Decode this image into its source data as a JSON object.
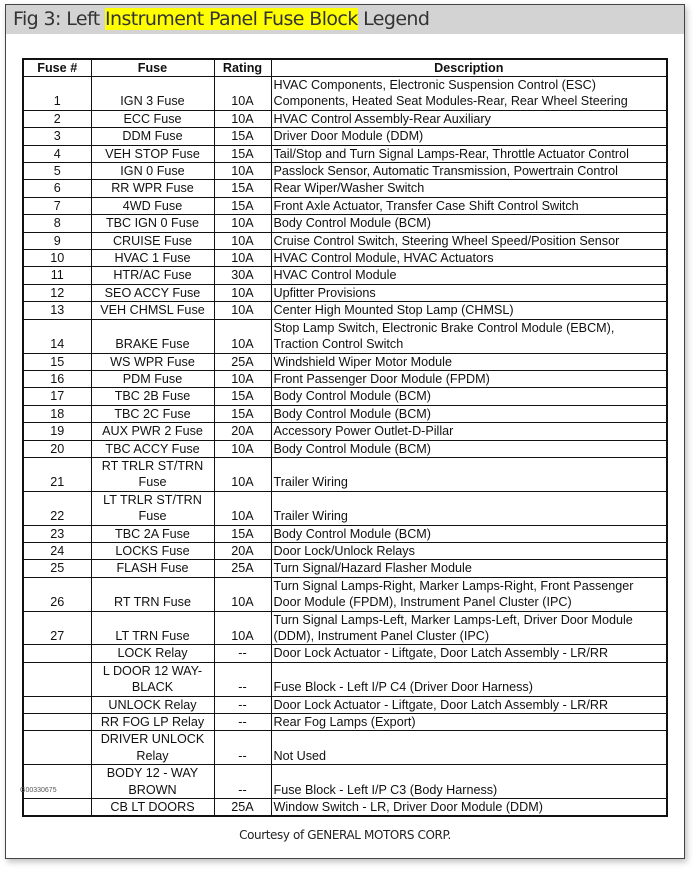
{
  "title": {
    "prefix": "Fig 3: Left ",
    "highlight": "Instrument Panel Fuse Block",
    "suffix": " Legend"
  },
  "highlight_color": "#ffff00",
  "table": {
    "headers": [
      "Fuse #",
      "Fuse",
      "Rating",
      "Description"
    ],
    "rows": [
      {
        "num": "1",
        "fuse": [
          "IGN 3 Fuse"
        ],
        "rating": "10A",
        "desc": [
          "HVAC Components, Electronic Suspension Control (ESC)",
          "Components, Heated Seat Modules-Rear, Rear Wheel Steering"
        ]
      },
      {
        "num": "2",
        "fuse": [
          "ECC Fuse"
        ],
        "rating": "10A",
        "desc": [
          "HVAC Control Assembly-Rear Auxiliary"
        ]
      },
      {
        "num": "3",
        "fuse": [
          "DDM Fuse"
        ],
        "rating": "15A",
        "desc": [
          "Driver Door Module (DDM)"
        ]
      },
      {
        "num": "4",
        "fuse": [
          "VEH STOP Fuse"
        ],
        "rating": "15A",
        "desc": [
          "Tail/Stop and Turn Signal Lamps-Rear, Throttle Actuator Control"
        ]
      },
      {
        "num": "5",
        "fuse": [
          "IGN 0 Fuse"
        ],
        "rating": "10A",
        "desc": [
          "Passlock Sensor, Automatic Transmission, Powertrain Control"
        ]
      },
      {
        "num": "6",
        "fuse": [
          "RR WPR Fuse"
        ],
        "rating": "15A",
        "desc": [
          "Rear Wiper/Washer Switch"
        ]
      },
      {
        "num": "7",
        "fuse": [
          "4WD Fuse"
        ],
        "rating": "15A",
        "desc": [
          "Front Axle Actuator, Transfer Case Shift Control Switch"
        ]
      },
      {
        "num": "8",
        "fuse": [
          "TBC IGN 0 Fuse"
        ],
        "rating": "10A",
        "desc": [
          "Body Control Module (BCM)"
        ]
      },
      {
        "num": "9",
        "fuse": [
          "CRUISE Fuse"
        ],
        "rating": "10A",
        "desc": [
          "Cruise Control Switch, Steering Wheel Speed/Position Sensor"
        ]
      },
      {
        "num": "10",
        "fuse": [
          "HVAC 1 Fuse"
        ],
        "rating": "10A",
        "desc": [
          "HVAC Control Module, HVAC Actuators"
        ]
      },
      {
        "num": "11",
        "fuse": [
          "HTR/AC Fuse"
        ],
        "rating": "30A",
        "desc": [
          "HVAC Control Module"
        ]
      },
      {
        "num": "12",
        "fuse": [
          "SEO ACCY Fuse"
        ],
        "rating": "10A",
        "desc": [
          "Upfitter Provisions"
        ]
      },
      {
        "num": "13",
        "fuse": [
          "VEH CHMSL Fuse"
        ],
        "rating": "10A",
        "desc": [
          "Center High Mounted Stop Lamp (CHMSL)"
        ]
      },
      {
        "num": "14",
        "fuse": [
          "BRAKE Fuse"
        ],
        "rating": "10A",
        "desc": [
          "Stop Lamp Switch, Electronic Brake Control Module (EBCM),",
          "Traction Control Switch"
        ]
      },
      {
        "num": "15",
        "fuse": [
          "WS WPR Fuse"
        ],
        "rating": "25A",
        "desc": [
          "Windshield Wiper Motor Module"
        ]
      },
      {
        "num": "16",
        "fuse": [
          "PDM Fuse"
        ],
        "rating": "10A",
        "desc": [
          "Front Passenger Door Module (FPDM)"
        ]
      },
      {
        "num": "17",
        "fuse": [
          "TBC 2B Fuse"
        ],
        "rating": "15A",
        "desc": [
          "Body Control Module (BCM)"
        ]
      },
      {
        "num": "18",
        "fuse": [
          "TBC 2C Fuse"
        ],
        "rating": "15A",
        "desc": [
          "Body Control Module (BCM)"
        ]
      },
      {
        "num": "19",
        "fuse": [
          "AUX PWR 2 Fuse"
        ],
        "rating": "20A",
        "desc": [
          "Accessory Power Outlet-D-Pillar"
        ]
      },
      {
        "num": "20",
        "fuse": [
          "TBC ACCY Fuse"
        ],
        "rating": "10A",
        "desc": [
          "Body Control Module (BCM)"
        ]
      },
      {
        "num": "21",
        "fuse": [
          "RT TRLR ST/TRN",
          "Fuse"
        ],
        "rating": "10A",
        "desc": [
          "Trailer Wiring"
        ]
      },
      {
        "num": "22",
        "fuse": [
          "LT TRLR ST/TRN",
          "Fuse"
        ],
        "rating": "10A",
        "desc": [
          "Trailer Wiring"
        ]
      },
      {
        "num": "23",
        "fuse": [
          "TBC 2A Fuse"
        ],
        "rating": "15A",
        "desc": [
          "Body Control Module (BCM)"
        ]
      },
      {
        "num": "24",
        "fuse": [
          "LOCKS Fuse"
        ],
        "rating": "20A",
        "desc": [
          "Door Lock/Unlock Relays"
        ]
      },
      {
        "num": "25",
        "fuse": [
          "FLASH Fuse"
        ],
        "rating": "25A",
        "desc": [
          "Turn Signal/Hazard Flasher Module"
        ]
      },
      {
        "num": "26",
        "fuse": [
          "RT TRN Fuse"
        ],
        "rating": "10A",
        "desc": [
          "Turn Signal Lamps-Right, Marker Lamps-Right, Front Passenger",
          "Door Module (FPDM), Instrument Panel Cluster (IPC)"
        ]
      },
      {
        "num": "27",
        "fuse": [
          "LT TRN Fuse"
        ],
        "rating": "10A",
        "desc": [
          "Turn Signal Lamps-Left, Marker Lamps-Left, Driver Door Module",
          "(DDM), Instrument Panel Cluster (IPC)"
        ]
      },
      {
        "num": "",
        "fuse": [
          "LOCK Relay"
        ],
        "rating": "--",
        "desc": [
          "Door Lock Actuator - Liftgate, Door Latch Assembly - LR/RR"
        ]
      },
      {
        "num": "",
        "fuse": [
          "L DOOR 12 WAY-",
          "BLACK"
        ],
        "rating": "--",
        "desc": [
          "Fuse Block - Left I/P C4 (Driver Door Harness)"
        ]
      },
      {
        "num": "",
        "fuse": [
          "UNLOCK Relay"
        ],
        "rating": "--",
        "desc": [
          "Door Lock Actuator - Liftgate, Door Latch Assembly - LR/RR"
        ]
      },
      {
        "num": "",
        "fuse": [
          "RR FOG LP Relay"
        ],
        "rating": "--",
        "desc": [
          "Rear Fog Lamps (Export)"
        ]
      },
      {
        "num": "",
        "fuse": [
          "DRIVER UNLOCK",
          "Relay"
        ],
        "rating": "--",
        "desc": [
          "Not Used"
        ]
      },
      {
        "num": "",
        "fuse": [
          "BODY 12 - WAY",
          "BROWN"
        ],
        "rating": "--",
        "desc": [
          "Fuse Block - Left I/P C3 (Body Harness)"
        ]
      },
      {
        "num": "",
        "fuse": [
          "CB LT DOORS"
        ],
        "rating": "25A",
        "desc": [
          "Window Switch - LR, Driver Door Module (DDM)"
        ]
      }
    ]
  },
  "figure_code": "G00330675",
  "courtesy": "Courtesy of GENERAL MOTORS CORP."
}
